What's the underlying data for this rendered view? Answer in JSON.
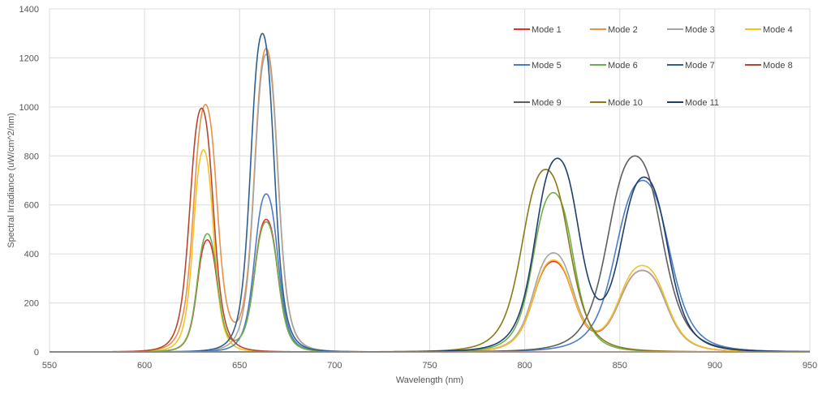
{
  "chart_data": {
    "type": "line",
    "title": "",
    "xlabel": "Wavelength (nm)",
    "ylabel": "Spectral Irradiance (uW/cm^2/nm)",
    "xlim": [
      550,
      950
    ],
    "ylim": [
      0,
      1400
    ],
    "xticks": [
      550,
      600,
      650,
      700,
      750,
      800,
      850,
      900,
      950
    ],
    "yticks": [
      0,
      200,
      400,
      600,
      800,
      1000,
      1200,
      1400
    ],
    "grid": true,
    "legend_position": "top-right",
    "series": [
      {
        "name": "Mode 1",
        "color": "#e8302a",
        "peaks": [
          {
            "center": 633,
            "height": 455,
            "width": 6
          },
          {
            "center": 664,
            "height": 540,
            "width": 7
          },
          {
            "center": 815,
            "height": 365,
            "width": 12
          },
          {
            "center": 862,
            "height": 330,
            "width": 14
          }
        ]
      },
      {
        "name": "Mode 2",
        "color": "#e8914a",
        "peaks": [
          {
            "center": 632,
            "height": 1005,
            "width": 7
          },
          {
            "center": 664,
            "height": 1235,
            "width": 7
          }
        ]
      },
      {
        "name": "Mode 3",
        "color": "#a5a5a5",
        "peaks": [
          {
            "center": 664,
            "height": 1215,
            "width": 7
          },
          {
            "center": 815,
            "height": 400,
            "width": 12
          },
          {
            "center": 862,
            "height": 330,
            "width": 14
          }
        ]
      },
      {
        "name": "Mode 4",
        "color": "#f5c224",
        "peaks": [
          {
            "center": 631,
            "height": 825,
            "width": 6
          },
          {
            "center": 815,
            "height": 370,
            "width": 12
          },
          {
            "center": 862,
            "height": 350,
            "width": 14
          }
        ]
      },
      {
        "name": "Mode 5",
        "color": "#4a7ec4",
        "peaks": [
          {
            "center": 664,
            "height": 645,
            "width": 7
          },
          {
            "center": 862,
            "height": 700,
            "width": 16
          }
        ]
      },
      {
        "name": "Mode 6",
        "color": "#6fae4a",
        "peaks": [
          {
            "center": 633,
            "height": 480,
            "width": 6
          },
          {
            "center": 664,
            "height": 530,
            "width": 7
          },
          {
            "center": 815,
            "height": 650,
            "width": 12
          }
        ]
      },
      {
        "name": "Mode 7",
        "color": "#2e5f8f",
        "peaks": [
          {
            "center": 662,
            "height": 1300,
            "width": 7
          }
        ]
      },
      {
        "name": "Mode 8",
        "color": "#b5472e",
        "peaks": [
          {
            "center": 630,
            "height": 995,
            "width": 7
          }
        ]
      },
      {
        "name": "Mode 9",
        "color": "#5e5e5e",
        "peaks": [
          {
            "center": 858,
            "height": 800,
            "width": 16
          }
        ]
      },
      {
        "name": "Mode 10",
        "color": "#8a7a16",
        "peaks": [
          {
            "center": 811,
            "height": 745,
            "width": 14
          }
        ]
      },
      {
        "name": "Mode 11",
        "color": "#1f3e6e",
        "peaks": [
          {
            "center": 817,
            "height": 780,
            "width": 13
          },
          {
            "center": 863,
            "height": 705,
            "width": 14
          }
        ]
      }
    ]
  }
}
